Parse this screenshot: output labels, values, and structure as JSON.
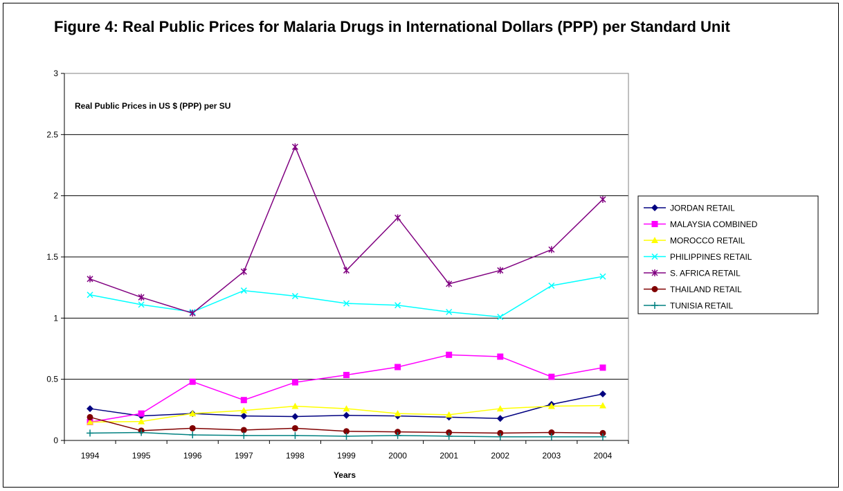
{
  "figure": {
    "title": "Figure 4: Real Public Prices for Malaria Drugs in International Dollars (PPP) per Standard Unit"
  },
  "chart_data": {
    "type": "line",
    "title": "Figure 4: Real Public Prices for Malaria Drugs in International Dollars (PPP) per Standard Unit",
    "annotation": "Real Public Prices in US $ (PPP) per SU",
    "xlabel": "Years",
    "ylabel": "",
    "x": [
      "1994",
      "1995",
      "1996",
      "1997",
      "1998",
      "1999",
      "2000",
      "2001",
      "2002",
      "2003",
      "2004"
    ],
    "ylim": [
      0,
      3
    ],
    "yticks": [
      "0",
      "0.5",
      "1",
      "1.5",
      "2",
      "2.5",
      "3"
    ],
    "grid": true,
    "legend_position": "right",
    "series": [
      {
        "name": "JORDAN RETAIL",
        "color": "#000080",
        "marker": "diamond",
        "values": [
          0.26,
          0.2,
          0.22,
          0.2,
          0.195,
          0.205,
          0.2,
          0.19,
          0.18,
          0.295,
          0.38
        ]
      },
      {
        "name": "MALAYSIA COMBINED",
        "color": "#FF00FF",
        "marker": "square",
        "values": [
          0.15,
          0.22,
          0.48,
          0.33,
          0.475,
          0.535,
          0.6,
          0.7,
          0.685,
          0.52,
          0.595
        ]
      },
      {
        "name": "MOROCCO RETAIL",
        "color": "#FFFF00",
        "marker": "triangle",
        "values": [
          0.15,
          0.155,
          0.22,
          0.245,
          0.28,
          0.26,
          0.22,
          0.21,
          0.26,
          0.28,
          0.285
        ]
      },
      {
        "name": "PHILIPPINES RETAIL",
        "color": "#00FFFF",
        "marker": "x",
        "values": [
          1.19,
          1.11,
          1.05,
          1.225,
          1.18,
          1.12,
          1.105,
          1.05,
          1.01,
          1.265,
          1.34
        ]
      },
      {
        "name": "S. AFRICA RETAIL",
        "color": "#800080",
        "marker": "star",
        "values": [
          1.32,
          1.17,
          1.04,
          1.38,
          2.4,
          1.39,
          1.82,
          1.28,
          1.39,
          1.56,
          1.97
        ]
      },
      {
        "name": "THAILAND RETAIL",
        "color": "#800000",
        "marker": "circle",
        "values": [
          0.19,
          0.08,
          0.1,
          0.085,
          0.1,
          0.075,
          0.07,
          0.065,
          0.06,
          0.065,
          0.06
        ]
      },
      {
        "name": "TUNISIA RETAIL",
        "color": "#008080",
        "marker": "plus",
        "values": [
          0.06,
          0.065,
          0.045,
          0.04,
          0.04,
          0.035,
          0.04,
          0.035,
          0.03,
          0.03,
          0.03
        ]
      }
    ]
  }
}
